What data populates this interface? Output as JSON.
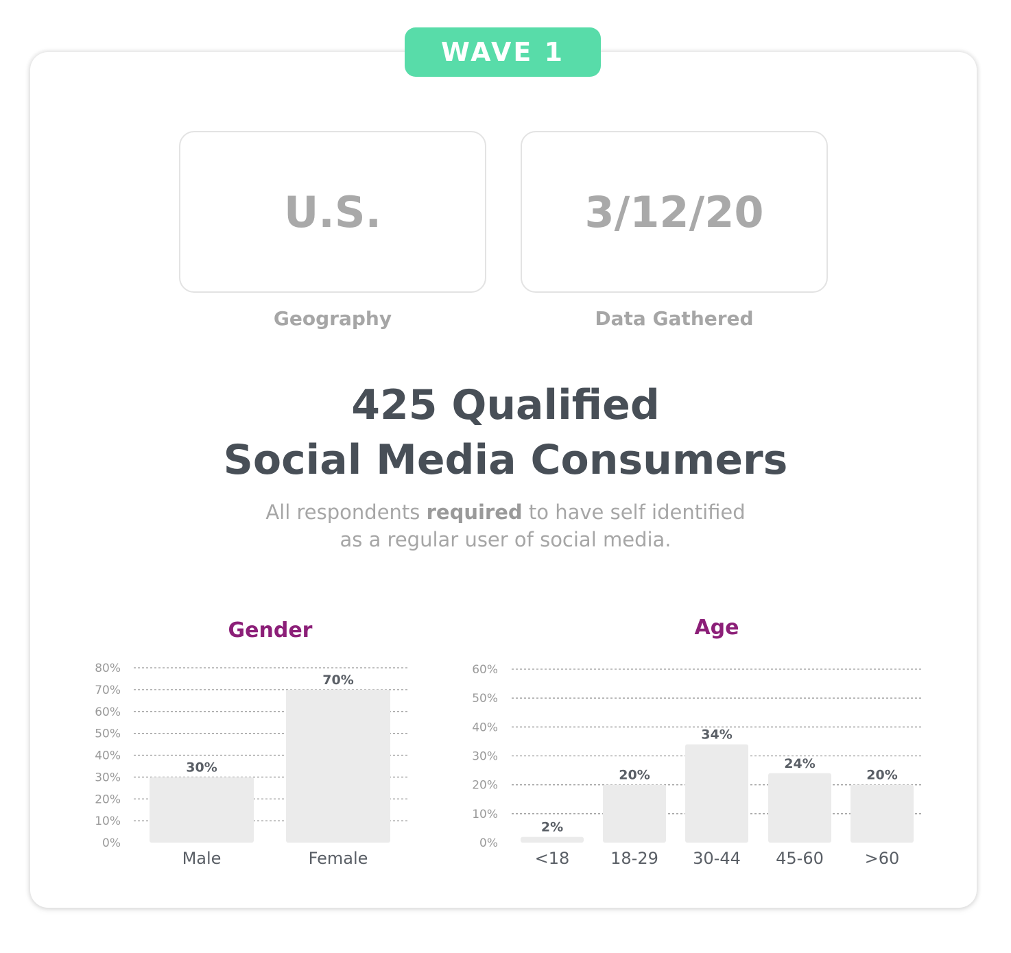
{
  "badge": {
    "label": "WAVE 1",
    "color": "#58dca9"
  },
  "info_boxes": [
    {
      "value": "U.S.",
      "label": "Geography"
    },
    {
      "value": "3/12/20",
      "label": "Data Gathered"
    }
  ],
  "headline": {
    "line1": "425 Qualified",
    "line2": "Social Media Consumers"
  },
  "subtext": {
    "line1_before": "All respondents ",
    "line1_bold": "required",
    "line1_after": " to have self identified",
    "line2": "as a regular user of social media."
  },
  "colors": {
    "chart_title": "#8c1f78",
    "bar": "#ebebeb",
    "text": "#484f57"
  },
  "chart_data": [
    {
      "type": "bar",
      "title": "Gender",
      "categories": [
        "Male",
        "Female"
      ],
      "values": [
        30,
        70
      ],
      "value_labels": [
        "30%",
        "70%"
      ],
      "yticks": [
        "0%",
        "10%",
        "20%",
        "30%",
        "40%",
        "50%",
        "60%",
        "70%",
        "80%"
      ],
      "ylim": [
        0,
        80
      ],
      "grid": true,
      "xlabel": "",
      "ylabel": ""
    },
    {
      "type": "bar",
      "title": "Age",
      "categories": [
        "<18",
        "18-29",
        "30-44",
        "45-60",
        ">60"
      ],
      "values": [
        2,
        20,
        34,
        24,
        20
      ],
      "value_labels": [
        "2%",
        "20%",
        "34%",
        "24%",
        "20%"
      ],
      "yticks": [
        "0%",
        "10%",
        "20%",
        "30%",
        "40%",
        "50%",
        "60%"
      ],
      "ylim": [
        0,
        60
      ],
      "grid": true,
      "xlabel": "",
      "ylabel": ""
    }
  ]
}
